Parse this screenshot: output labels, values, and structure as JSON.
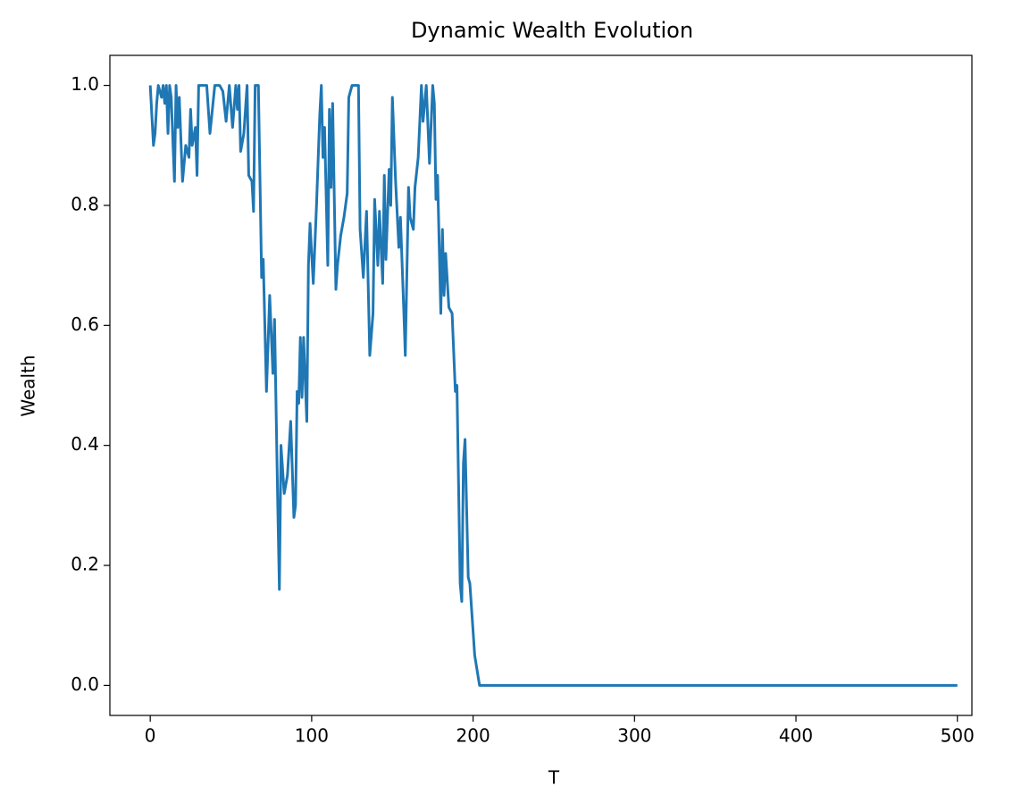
{
  "chart_data": {
    "type": "line",
    "title": "Dynamic Wealth Evolution",
    "x_label": "T",
    "y_label": "Wealth",
    "x": [
      0,
      2,
      3,
      4,
      5,
      7,
      8,
      9,
      10,
      11,
      12,
      13,
      15,
      16,
      17,
      18,
      20,
      22,
      24,
      25,
      26,
      28,
      29,
      30,
      35,
      37,
      40,
      43,
      45,
      47,
      49,
      51,
      53,
      54,
      55,
      56,
      58,
      60,
      61,
      63,
      64,
      65,
      67,
      69,
      70,
      72,
      74,
      76,
      77,
      79,
      80,
      81,
      83,
      85,
      87,
      89,
      90,
      91,
      92,
      93,
      94,
      95,
      97,
      98,
      99,
      101,
      103,
      105,
      106,
      107,
      108,
      110,
      111,
      112,
      113,
      115,
      116,
      118,
      120,
      122,
      123,
      125,
      129,
      130,
      132,
      134,
      136,
      138,
      139,
      141,
      142,
      144,
      145,
      146,
      148,
      149,
      150,
      152,
      154,
      155,
      157,
      158,
      160,
      161,
      163,
      164,
      166,
      168,
      169,
      171,
      173,
      175,
      176,
      177,
      178,
      180,
      181,
      182,
      183,
      185,
      187,
      189,
      190,
      192,
      193,
      194,
      195,
      197,
      198,
      201,
      204,
      500
    ],
    "values": [
      1.0,
      0.9,
      0.92,
      0.97,
      1.0,
      0.98,
      1.0,
      0.97,
      1.0,
      0.92,
      1.0,
      0.98,
      0.84,
      1.0,
      0.93,
      0.98,
      0.84,
      0.9,
      0.88,
      0.96,
      0.9,
      0.93,
      0.85,
      1.0,
      1.0,
      0.92,
      1.0,
      1.0,
      0.99,
      0.94,
      1.0,
      0.93,
      1.0,
      0.96,
      1.0,
      0.89,
      0.92,
      1.0,
      0.85,
      0.84,
      0.79,
      1.0,
      1.0,
      0.68,
      0.71,
      0.49,
      0.65,
      0.52,
      0.61,
      0.3,
      0.16,
      0.4,
      0.32,
      0.35,
      0.44,
      0.28,
      0.3,
      0.49,
      0.47,
      0.58,
      0.48,
      0.58,
      0.44,
      0.7,
      0.77,
      0.67,
      0.8,
      0.95,
      1.0,
      0.88,
      0.93,
      0.7,
      0.96,
      0.83,
      0.97,
      0.66,
      0.7,
      0.75,
      0.78,
      0.82,
      0.98,
      1.0,
      1.0,
      0.76,
      0.68,
      0.79,
      0.55,
      0.62,
      0.81,
      0.7,
      0.79,
      0.67,
      0.85,
      0.71,
      0.86,
      0.8,
      0.98,
      0.84,
      0.73,
      0.78,
      0.63,
      0.55,
      0.83,
      0.78,
      0.76,
      0.83,
      0.88,
      1.0,
      0.94,
      1.0,
      0.87,
      1.0,
      0.97,
      0.81,
      0.85,
      0.62,
      0.76,
      0.65,
      0.72,
      0.63,
      0.62,
      0.49,
      0.5,
      0.17,
      0.14,
      0.37,
      0.41,
      0.18,
      0.17,
      0.05,
      0.0,
      0.0
    ],
    "color": "#1f77b4",
    "xlim": [
      -25,
      509
    ],
    "ylim": [
      -0.05,
      1.05
    ],
    "xticks": [
      0,
      100,
      200,
      300,
      400,
      500
    ],
    "yticks": [
      {
        "value": 0,
        "label": "0.0"
      },
      0.2,
      0.4,
      0.6,
      0.8,
      {
        "value": 1,
        "label": "1.0"
      }
    ]
  }
}
